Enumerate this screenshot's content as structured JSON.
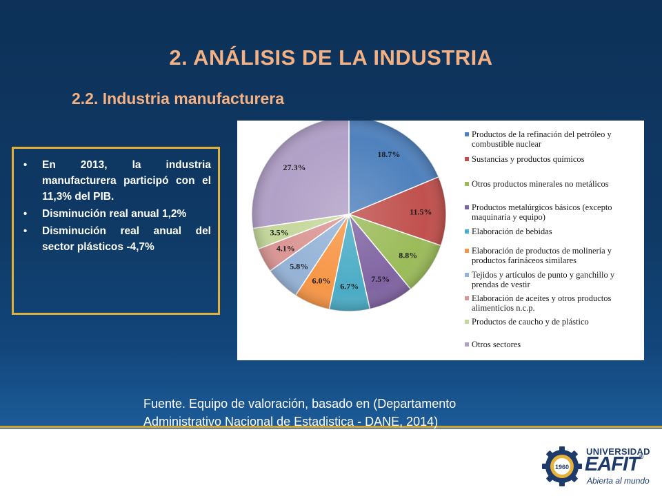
{
  "slide": {
    "title": "2. ANÁLISIS DE LA INDUSTRIA",
    "subtitle": "2.2. Industria manufacturera"
  },
  "bullets": [
    "En 2013, la industria manufacturera participó con el 11,3% del PIB.",
    "Disminución real anual 1,2%",
    "Disminución real anual del sector plásticos -4,7%"
  ],
  "chart_data": {
    "type": "pie",
    "legend_position": "right",
    "slices": [
      {
        "label": "Productos de la refinación del petróleo y combustible nuclear",
        "value": 18.7,
        "value_label": "18.7%",
        "color": "#4f81bd"
      },
      {
        "label": "Sustancias y productos químicos",
        "value": 11.5,
        "value_label": "11.5%",
        "color": "#c0504d"
      },
      {
        "label": "Otros productos minerales no metálicos",
        "value": 8.8,
        "value_label": "8.8%",
        "color": "#9bbb59"
      },
      {
        "label": "Productos metalúrgicos básicos (excepto maquinaria y equipo)",
        "value": 7.5,
        "value_label": "7.5%",
        "color": "#8064a2"
      },
      {
        "label": "Elaboración de bebidas",
        "value": 6.7,
        "value_label": "6.7%",
        "color": "#4bacc6"
      },
      {
        "label": "Elaboración de productos de molinería y productos farináceos similares",
        "value": 6.0,
        "value_label": "6.0%",
        "color": "#f79646"
      },
      {
        "label": "Tejidos y artículos de punto y ganchillo y prendas de vestir",
        "value": 5.8,
        "value_label": "5.8%",
        "color": "#95b3d7"
      },
      {
        "label": "Elaboración de aceites y otros productos alimenticios n.c.p.",
        "value": 4.1,
        "value_label": "4.1%",
        "color": "#da9694"
      },
      {
        "label": "Productos de caucho y de plástico",
        "value": 3.5,
        "value_label": "3.5%",
        "color": "#c4d79b"
      },
      {
        "label": "Otros sectores",
        "value": 27.3,
        "value_label": "27.3%",
        "color": "#b1a0c7"
      }
    ]
  },
  "source": {
    "line1": "Fuente. Equipo de valoración, basado en (Departamento",
    "line2": "Administrativo Nacional de Estadistica - DANE, 2014)"
  },
  "logo": {
    "university": "UNIVERSIDAD",
    "name": "EAFIT",
    "registered": "®",
    "tagline": "Abierta al mundo",
    "seal_year": "1960"
  }
}
